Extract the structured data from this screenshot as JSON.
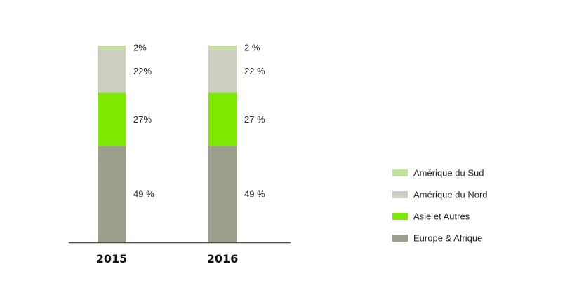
{
  "chart_data": {
    "type": "bar",
    "stacked": true,
    "categories": [
      "2015",
      "2016"
    ],
    "series": [
      {
        "name": "Europe & Afrique",
        "values": [
          49,
          49
        ],
        "labels": [
          "49 %",
          "49 %"
        ],
        "color": "#9c9f8c"
      },
      {
        "name": "Asie et Autres",
        "values": [
          27,
          27
        ],
        "labels": [
          "27%",
          "27 %"
        ],
        "color": "#7ee800"
      },
      {
        "name": "Amérique du Nord",
        "values": [
          22,
          22
        ],
        "labels": [
          "22%",
          "22 %"
        ],
        "color": "#ccceC2"
      },
      {
        "name": "Amérique du Sud",
        "values": [
          2,
          2
        ],
        "labels": [
          "2%",
          "2 %"
        ],
        "color": "#c0e498"
      }
    ],
    "legend_order": [
      "Amérique du Sud",
      "Amérique du Nord",
      "Asie et Autres",
      "Europe & Afrique"
    ],
    "legend_position": "right",
    "ylim": [
      0,
      100
    ],
    "grid": false,
    "axis_color": "#4a4a3c"
  }
}
